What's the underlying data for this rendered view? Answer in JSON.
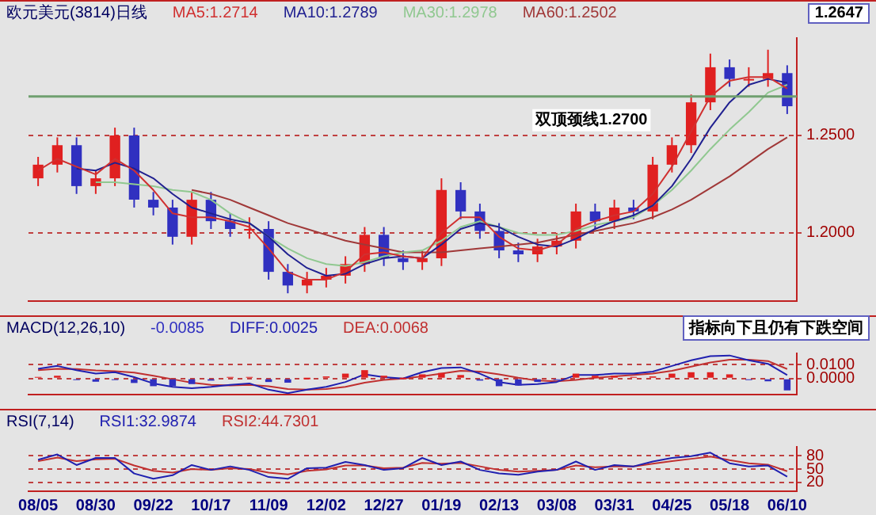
{
  "chart_data": [
    {
      "type": "candlestick",
      "title": "欧元美元(3814)日线",
      "categories": [
        null,
        null,
        null,
        null,
        null,
        null,
        null,
        null,
        null,
        null,
        null,
        null,
        null,
        null,
        null,
        null,
        null,
        null,
        null,
        null,
        null,
        null,
        null,
        null,
        null,
        null,
        null,
        null,
        null,
        null,
        null,
        null,
        null,
        null,
        null,
        null,
        null,
        null,
        null,
        null
      ],
      "ohlc": [
        [
          1.228,
          1.239,
          1.224,
          1.235
        ],
        [
          1.235,
          1.249,
          1.231,
          1.245
        ],
        [
          1.245,
          1.249,
          1.22,
          1.224
        ],
        [
          1.224,
          1.232,
          1.22,
          1.228
        ],
        [
          1.228,
          1.254,
          1.224,
          1.25
        ],
        [
          1.25,
          1.254,
          1.213,
          1.217
        ],
        [
          1.217,
          1.221,
          1.209,
          1.213
        ],
        [
          1.213,
          1.217,
          1.194,
          1.198
        ],
        [
          1.198,
          1.221,
          1.194,
          1.217
        ],
        [
          1.217,
          1.221,
          1.202,
          1.206
        ],
        [
          1.206,
          1.21,
          1.198,
          1.202
        ],
        [
          1.202,
          1.208,
          1.197,
          1.202
        ],
        [
          1.202,
          1.206,
          1.176,
          1.18
        ],
        [
          1.18,
          1.184,
          1.169,
          1.173
        ],
        [
          1.173,
          1.18,
          1.169,
          1.176
        ],
        [
          1.176,
          1.182,
          1.172,
          1.178
        ],
        [
          1.178,
          1.188,
          1.174,
          1.184
        ],
        [
          1.184,
          1.203,
          1.18,
          1.199
        ],
        [
          1.199,
          1.203,
          1.183,
          1.187
        ],
        [
          1.187,
          1.191,
          1.181,
          1.185
        ],
        [
          1.185,
          1.191,
          1.181,
          1.187
        ],
        [
          1.187,
          1.228,
          1.183,
          1.222
        ],
        [
          1.222,
          1.226,
          1.207,
          1.211
        ],
        [
          1.211,
          1.215,
          1.197,
          1.201
        ],
        [
          1.201,
          1.205,
          1.187,
          1.191
        ],
        [
          1.191,
          1.195,
          1.185,
          1.189
        ],
        [
          1.189,
          1.197,
          1.185,
          1.193
        ],
        [
          1.193,
          1.2,
          1.189,
          1.196
        ],
        [
          1.196,
          1.215,
          1.192,
          1.211
        ],
        [
          1.211,
          1.215,
          1.202,
          1.206
        ],
        [
          1.206,
          1.217,
          1.202,
          1.213
        ],
        [
          1.213,
          1.217,
          1.207,
          1.211
        ],
        [
          1.211,
          1.239,
          1.207,
          1.235
        ],
        [
          1.235,
          1.249,
          1.231,
          1.245
        ],
        [
          1.245,
          1.271,
          1.241,
          1.267
        ],
        [
          1.267,
          1.292,
          1.263,
          1.285
        ],
        [
          1.285,
          1.289,
          1.275,
          1.279
        ],
        [
          1.279,
          1.285,
          1.275,
          1.279
        ],
        [
          1.279,
          1.294,
          1.275,
          1.282
        ],
        [
          1.282,
          1.286,
          1.261,
          1.265
        ]
      ],
      "colors": [
        "#e02020",
        "#e02020",
        "#3030c0",
        "#e02020",
        "#e02020",
        "#3030c0",
        "#3030c0",
        "#3030c0",
        "#e02020",
        "#3030c0",
        "#3030c0",
        "#e02020",
        "#3030c0",
        "#3030c0",
        "#e02020",
        "#e02020",
        "#e02020",
        "#e02020",
        "#3030c0",
        "#3030c0",
        "#e02020",
        "#e02020",
        "#3030c0",
        "#3030c0",
        "#3030c0",
        "#3030c0",
        "#e02020",
        "#e02020",
        "#e02020",
        "#3030c0",
        "#e02020",
        "#3030c0",
        "#e02020",
        "#e02020",
        "#e02020",
        "#e02020",
        "#3030c0",
        "#e02020",
        "#e02020",
        "#3030c0"
      ],
      "series": [
        {
          "name": "MA5:1.2714",
          "color": "#d03030",
          "type": "line",
          "values": [
            1.232,
            1.238,
            1.234,
            1.23,
            1.238,
            1.232,
            1.222,
            1.21,
            1.208,
            1.208,
            1.206,
            1.203,
            1.192,
            1.18,
            1.176,
            1.176,
            1.18,
            1.189,
            1.19,
            1.188,
            1.187,
            1.2,
            1.208,
            1.208,
            1.198,
            1.192,
            1.191,
            1.194,
            1.202,
            1.206,
            1.209,
            1.211,
            1.22,
            1.234,
            1.252,
            1.27,
            1.278,
            1.28,
            1.28,
            1.274
          ]
        },
        {
          "name": "MA10:1.2789",
          "color": "#202090",
          "type": "line",
          "values": [
            null,
            null,
            1.233,
            1.232,
            1.236,
            1.233,
            1.228,
            1.22,
            1.213,
            1.21,
            1.207,
            1.205,
            1.198,
            1.189,
            1.182,
            1.178,
            1.179,
            1.184,
            1.187,
            1.188,
            1.187,
            1.194,
            1.202,
            1.205,
            1.203,
            1.198,
            1.194,
            1.193,
            1.197,
            1.202,
            1.206,
            1.209,
            1.214,
            1.224,
            1.238,
            1.254,
            1.267,
            1.276,
            1.279,
            1.277
          ]
        },
        {
          "name": "MA30:1.2978",
          "color": "#90c890",
          "type": "line",
          "values": [
            null,
            null,
            null,
            1.226,
            1.226,
            1.225,
            1.224,
            1.222,
            1.221,
            1.217,
            1.21,
            1.205,
            1.198,
            1.192,
            1.187,
            1.184,
            1.183,
            1.185,
            1.188,
            1.19,
            1.191,
            1.196,
            1.203,
            1.206,
            1.203,
            1.2,
            1.199,
            1.199,
            1.201,
            1.204,
            1.206,
            1.208,
            1.214,
            1.222,
            1.232,
            1.243,
            1.253,
            1.262,
            1.272,
            1.276
          ]
        },
        {
          "name": "MA60:1.2502",
          "color": "#a03838",
          "type": "line",
          "values": [
            null,
            null,
            null,
            null,
            null,
            null,
            null,
            null,
            1.222,
            1.22,
            1.217,
            1.213,
            1.209,
            1.205,
            1.202,
            1.199,
            1.196,
            1.194,
            1.192,
            1.19,
            1.19,
            1.19,
            1.191,
            1.192,
            1.193,
            1.194,
            1.195,
            1.197,
            1.199,
            1.201,
            1.203,
            1.205,
            1.208,
            1.212,
            1.217,
            1.223,
            1.229,
            1.236,
            1.243,
            1.249
          ]
        }
      ],
      "ylim": [
        1.165,
        1.3
      ],
      "yticks": [
        {
          "value": 1.2,
          "label": "1.2000"
        },
        {
          "value": 1.25,
          "label": "1.2500"
        }
      ],
      "ref_lines": [
        {
          "axis": "y",
          "value": 1.27,
          "label": "双顶颈线1.2700",
          "color": "#70a070",
          "line_style": "solid"
        }
      ],
      "annotations": [
        "1.2647"
      ],
      "grid": "y",
      "legend": "top left",
      "marker": "none",
      "tick_labels": "y"
    },
    {
      "type": "bar",
      "title": "MACD(12,26,10)",
      "categories": [
        null,
        null,
        null,
        null,
        null,
        null,
        null,
        null,
        null,
        null,
        null,
        null,
        null,
        null,
        null,
        null,
        null,
        null,
        null,
        null,
        null,
        null,
        null,
        null,
        null,
        null,
        null,
        null,
        null,
        null,
        null,
        null,
        null,
        null,
        null,
        null,
        null,
        null,
        null,
        null
      ],
      "series": [
        {
          "name": "-0.0085",
          "values": [
            0.001,
            0.002,
            -0.0008,
            -0.0023,
            -0.0008,
            -0.0032,
            -0.0055,
            -0.0055,
            -0.004,
            -0.0015,
            0.0005,
            0.001,
            -0.0025,
            -0.003,
            0,
            0.0015,
            0.0035,
            0.006,
            0.002,
            0,
            0.003,
            0.004,
            0.0025,
            -0.0015,
            -0.0055,
            -0.005,
            -0.0025,
            -0.0005,
            0.0035,
            0.002,
            0.002,
            0.001,
            0.0015,
            0.0035,
            0.0045,
            0.0045,
            0.003,
            -0.0005,
            -0.002,
            -0.0085
          ],
          "colors": [
            "#e02020",
            "#e02020",
            "#3030c0",
            "#3030c0",
            "#3030c0",
            "#3030c0",
            "#3030c0",
            "#3030c0",
            "#3030c0",
            "#3030c0",
            "#e02020",
            "#e02020",
            "#3030c0",
            "#3030c0",
            "#e02020",
            "#e02020",
            "#e02020",
            "#e02020",
            "#e02020",
            "#e02020",
            "#e02020",
            "#e02020",
            "#e02020",
            "#3030c0",
            "#3030c0",
            "#3030c0",
            "#3030c0",
            "#3030c0",
            "#e02020",
            "#e02020",
            "#e02020",
            "#e02020",
            "#e02020",
            "#e02020",
            "#e02020",
            "#e02020",
            "#e02020",
            "#3030c0",
            "#3030c0",
            "#3030c0"
          ]
        },
        {
          "name": "DIFF:0.0025",
          "type": "line",
          "color": "#2020b0",
          "values": [
            0.007,
            0.009,
            0.006,
            0.0035,
            0.0045,
            0.001,
            -0.0035,
            -0.006,
            -0.007,
            -0.006,
            -0.0045,
            -0.0035,
            -0.008,
            -0.0105,
            -0.008,
            -0.006,
            -0.0025,
            0.003,
            0.001,
            0,
            0.0045,
            0.0075,
            0.008,
            0.0035,
            -0.0025,
            -0.0045,
            -0.004,
            -0.0025,
            0.0025,
            0.0025,
            0.0035,
            0.0035,
            0.005,
            0.009,
            0.013,
            0.016,
            0.0165,
            0.013,
            0.0105,
            0.0025
          ]
        },
        {
          "name": "DEA:0.0068",
          "type": "line",
          "color": "#c03030",
          "values": [
            0.006,
            0.007,
            0.0068,
            0.0058,
            0.0053,
            0.0042,
            0.002,
            -0.0005,
            -0.003,
            -0.0045,
            -0.005,
            -0.0045,
            -0.0055,
            -0.0075,
            -0.008,
            -0.0075,
            -0.006,
            -0.003,
            -0.001,
            0,
            0.0015,
            0.0035,
            0.0055,
            0.005,
            0.003,
            0.0005,
            -0.0015,
            -0.002,
            -0.001,
            0.0005,
            0.0015,
            0.0025,
            0.0035,
            0.0055,
            0.0085,
            0.0115,
            0.0135,
            0.0135,
            0.0125,
            0.0068
          ]
        }
      ],
      "ylim": [
        -0.0115,
        0.018
      ],
      "yticks": [
        {
          "value": 0,
          "label": "0.0000"
        },
        {
          "value": 0.01,
          "label": "0.0100"
        }
      ],
      "annotations": [
        "指标向下且仍有下跌空间"
      ],
      "grid": "y",
      "legend": "top left",
      "marker": "none",
      "tick_labels": "y"
    },
    {
      "type": "line",
      "title": "RSI(7,14)",
      "categories": [
        "08/05",
        null,
        null,
        "08/30",
        null,
        null,
        "09/22",
        null,
        null,
        "10/17",
        null,
        null,
        "11/09",
        null,
        null,
        "12/02",
        null,
        null,
        "12/27",
        null,
        null,
        "01/19",
        null,
        null,
        "02/13",
        null,
        null,
        "03/08",
        null,
        null,
        "03/31",
        null,
        null,
        "04/25",
        null,
        null,
        "05/18",
        null,
        null,
        "06/10"
      ],
      "series": [
        {
          "name": "RSI1:32.9874",
          "color": "#2020b0",
          "values": [
            71,
            83,
            59,
            75,
            75,
            40,
            28,
            36,
            59,
            48,
            56,
            48,
            32,
            28,
            52,
            53,
            66,
            59,
            48,
            52,
            75,
            59,
            67,
            48,
            40,
            37,
            44,
            48,
            67,
            48,
            59,
            56,
            67,
            75,
            79,
            87,
            63,
            56,
            58,
            33
          ]
        },
        {
          "name": "RSI2:44.7301",
          "color": "#c03030",
          "values": [
            68,
            76,
            68,
            72,
            73,
            58,
            46,
            42,
            50,
            48,
            52,
            50,
            42,
            38,
            46,
            49,
            58,
            58,
            52,
            53,
            64,
            62,
            64,
            56,
            48,
            44,
            46,
            48,
            58,
            54,
            56,
            56,
            62,
            68,
            73,
            78,
            70,
            63,
            60,
            45
          ]
        }
      ],
      "ylim": [
        0,
        100
      ],
      "yticks": [
        20,
        50,
        80
      ],
      "grid": "y",
      "legend": "top left",
      "marker": "none"
    }
  ]
}
